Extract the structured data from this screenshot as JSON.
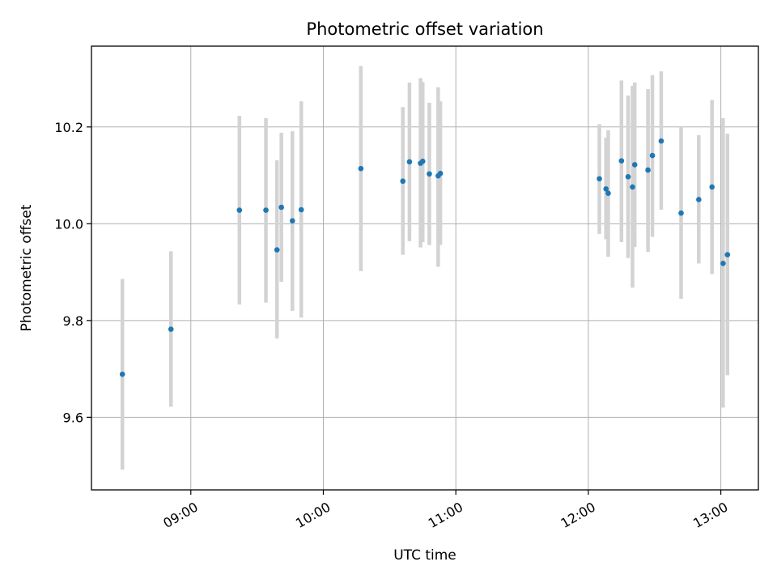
{
  "chart_data": {
    "type": "scatter",
    "title": "Photometric offset variation",
    "xlabel": "UTC time",
    "ylabel": "Photometric offset",
    "x_axis_type": "time",
    "xlim": [
      "08:15",
      "13:17"
    ],
    "ylim": [
      9.45,
      10.367
    ],
    "x_ticks": [
      "09:00",
      "10:00",
      "11:00",
      "12:00",
      "13:00"
    ],
    "y_ticks": [
      9.6,
      9.8,
      10.0,
      10.2
    ],
    "y_tick_labels": [
      "9.6",
      "9.8",
      "10.0",
      "10.2"
    ],
    "grid": true,
    "colors": {
      "marker": "#1f77b4",
      "errorbar": "#d3d3d3",
      "grid": "#b0b0b0",
      "axes": "#000000"
    },
    "points": [
      {
        "x": "08:29",
        "y": 9.689,
        "yerr_low": 9.492,
        "yerr_high": 9.886
      },
      {
        "x": "08:51",
        "y": 9.782,
        "yerr_low": 9.622,
        "yerr_high": 9.943
      },
      {
        "x": "09:22",
        "y": 10.028,
        "yerr_low": 9.833,
        "yerr_high": 10.223
      },
      {
        "x": "09:34",
        "y": 10.028,
        "yerr_low": 9.837,
        "yerr_high": 10.218
      },
      {
        "x": "09:39",
        "y": 9.946,
        "yerr_low": 9.763,
        "yerr_high": 10.131
      },
      {
        "x": "09:41",
        "y": 10.034,
        "yerr_low": 9.88,
        "yerr_high": 10.188
      },
      {
        "x": "09:46",
        "y": 10.006,
        "yerr_low": 9.82,
        "yerr_high": 10.191
      },
      {
        "x": "09:50",
        "y": 10.029,
        "yerr_low": 9.806,
        "yerr_high": 10.253
      },
      {
        "x": "10:17",
        "y": 10.114,
        "yerr_low": 9.902,
        "yerr_high": 10.326
      },
      {
        "x": "10:36",
        "y": 10.088,
        "yerr_low": 9.936,
        "yerr_high": 10.241
      },
      {
        "x": "10:39",
        "y": 10.128,
        "yerr_low": 9.964,
        "yerr_high": 10.292
      },
      {
        "x": "10:44",
        "y": 10.125,
        "yerr_low": 9.951,
        "yerr_high": 10.301
      },
      {
        "x": "10:45",
        "y": 10.129,
        "yerr_low": 9.962,
        "yerr_high": 10.293
      },
      {
        "x": "10:48",
        "y": 10.103,
        "yerr_low": 9.956,
        "yerr_high": 10.25
      },
      {
        "x": "10:52",
        "y": 10.099,
        "yerr_low": 9.911,
        "yerr_high": 10.282
      },
      {
        "x": "10:53",
        "y": 10.104,
        "yerr_low": 9.956,
        "yerr_high": 10.253
      },
      {
        "x": "12:05",
        "y": 10.093,
        "yerr_low": 9.979,
        "yerr_high": 10.206
      },
      {
        "x": "12:08",
        "y": 10.072,
        "yerr_low": 9.968,
        "yerr_high": 10.178
      },
      {
        "x": "12:09",
        "y": 10.063,
        "yerr_low": 9.932,
        "yerr_high": 10.193
      },
      {
        "x": "12:15",
        "y": 10.13,
        "yerr_low": 9.962,
        "yerr_high": 10.296
      },
      {
        "x": "12:18",
        "y": 10.097,
        "yerr_low": 9.929,
        "yerr_high": 10.265
      },
      {
        "x": "12:20",
        "y": 10.076,
        "yerr_low": 9.868,
        "yerr_high": 10.285
      },
      {
        "x": "12:21",
        "y": 10.122,
        "yerr_low": 9.952,
        "yerr_high": 10.292
      },
      {
        "x": "12:27",
        "y": 10.111,
        "yerr_low": 9.942,
        "yerr_high": 10.278
      },
      {
        "x": "12:29",
        "y": 10.141,
        "yerr_low": 9.973,
        "yerr_high": 10.307
      },
      {
        "x": "12:33",
        "y": 10.171,
        "yerr_low": 10.029,
        "yerr_high": 10.315
      },
      {
        "x": "12:42",
        "y": 10.022,
        "yerr_low": 9.845,
        "yerr_high": 10.2
      },
      {
        "x": "12:50",
        "y": 10.05,
        "yerr_low": 9.918,
        "yerr_high": 10.183
      },
      {
        "x": "12:56",
        "y": 10.076,
        "yerr_low": 9.896,
        "yerr_high": 10.256
      },
      {
        "x": "13:01",
        "y": 9.918,
        "yerr_low": 9.62,
        "yerr_high": 10.218
      },
      {
        "x": "13:03",
        "y": 9.936,
        "yerr_low": 9.687,
        "yerr_high": 10.186
      }
    ]
  }
}
